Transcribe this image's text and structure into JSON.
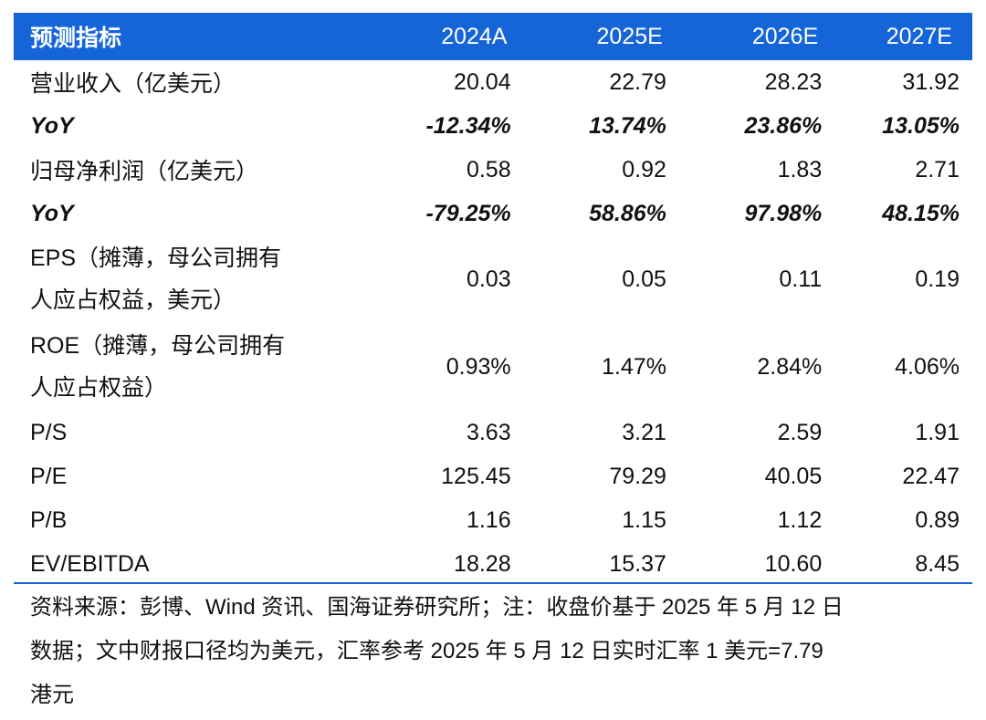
{
  "header": {
    "label": "预测指标",
    "years": [
      "2024A",
      "2025E",
      "2026E",
      "2027E"
    ]
  },
  "rows": [
    {
      "label": "营业收入（亿美元）",
      "values": [
        "20.04",
        "22.79",
        "28.23",
        "31.92"
      ]
    },
    {
      "label": "YoY",
      "values": [
        "-12.34%",
        "13.74%",
        "23.86%",
        "13.05%"
      ]
    },
    {
      "label": "归母净利润（亿美元）",
      "values": [
        "0.58",
        "0.92",
        "1.83",
        "2.71"
      ]
    },
    {
      "label": "YoY",
      "values": [
        "-79.25%",
        "58.86%",
        "97.98%",
        "48.15%"
      ]
    },
    {
      "label_line1": "EPS（摊薄，母公司拥有",
      "label_line2": "人应占权益，美元）",
      "values": [
        "0.03",
        "0.05",
        "0.11",
        "0.19"
      ]
    },
    {
      "label_line1": "ROE（摊薄，母公司拥有",
      "label_line2": "人应占权益）",
      "values": [
        "0.93%",
        "1.47%",
        "2.84%",
        "4.06%"
      ]
    },
    {
      "label": "P/S",
      "values": [
        "3.63",
        "3.21",
        "2.59",
        "1.91"
      ]
    },
    {
      "label": "P/E",
      "values": [
        "125.45",
        "79.29",
        "40.05",
        "22.47"
      ]
    },
    {
      "label": "P/B",
      "values": [
        "1.16",
        "1.15",
        "1.12",
        "0.89"
      ]
    },
    {
      "label": "EV/EBITDA",
      "values": [
        "18.28",
        "15.37",
        "10.60",
        "8.45"
      ]
    }
  ],
  "note": {
    "line1": "资料来源：彭博、Wind 资讯、国海证券研究所；注：收盘价基于 2025 年 5 月 12 日",
    "line2": "数据；文中财报口径均为美元，汇率参考 2025 年 5 月 12 日实时汇率 1 美元=7.79",
    "line3": "港元"
  },
  "colors": {
    "header_bg": "#1565d8",
    "header_text": "#ffffff",
    "rule": "#1565d8"
  }
}
